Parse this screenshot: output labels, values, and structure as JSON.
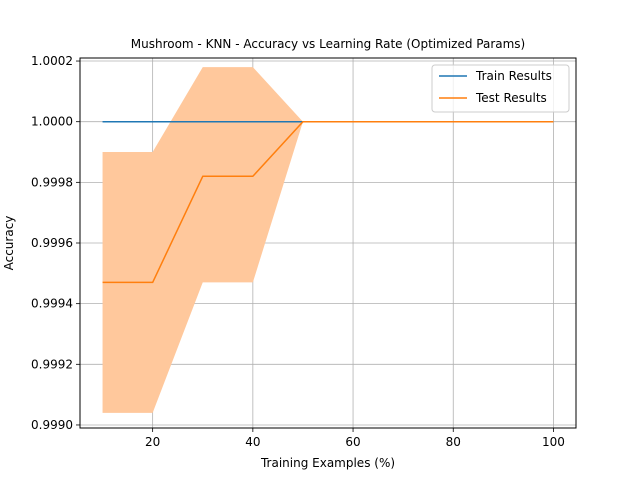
{
  "chart_data": {
    "type": "line",
    "title": "Mushroom - KNN - Accuracy vs Learning Rate (Optimized Params)",
    "xlabel": "Training Examples (%)",
    "ylabel": "Accuracy",
    "xlim": [
      5.5,
      104.5
    ],
    "ylim": [
      0.99899,
      1.00021
    ],
    "xticks": [
      20,
      40,
      60,
      80,
      100
    ],
    "yticks": [
      0.999,
      0.9992,
      0.9994,
      0.9996,
      0.9998,
      1.0,
      1.0002
    ],
    "ytick_labels": [
      "0.9990",
      "0.9992",
      "0.9994",
      "0.9996",
      "0.9998",
      "1.0000",
      "1.0002"
    ],
    "grid": true,
    "legend_position": "top-right",
    "x": [
      10,
      20,
      30,
      40,
      50,
      60,
      70,
      80,
      90,
      100
    ],
    "series": [
      {
        "name": "Train Results",
        "color": "#1f77b4",
        "values": [
          1.0,
          1.0,
          1.0,
          1.0,
          1.0,
          1.0,
          1.0,
          1.0,
          1.0,
          1.0
        ]
      },
      {
        "name": "Test Results",
        "color": "#ff7f0e",
        "band_color": "#ffc89c",
        "values": [
          0.99947,
          0.99947,
          0.99982,
          0.99982,
          1.0,
          1.0,
          1.0,
          1.0,
          1.0,
          1.0
        ],
        "band_lower": [
          0.99904,
          0.99904,
          0.99947,
          0.99947,
          1.0,
          1.0,
          1.0,
          1.0,
          1.0,
          1.0
        ],
        "band_upper": [
          0.9999,
          0.9999,
          1.00018,
          1.00018,
          1.0,
          1.0,
          1.0,
          1.0,
          1.0,
          1.0
        ]
      }
    ]
  }
}
